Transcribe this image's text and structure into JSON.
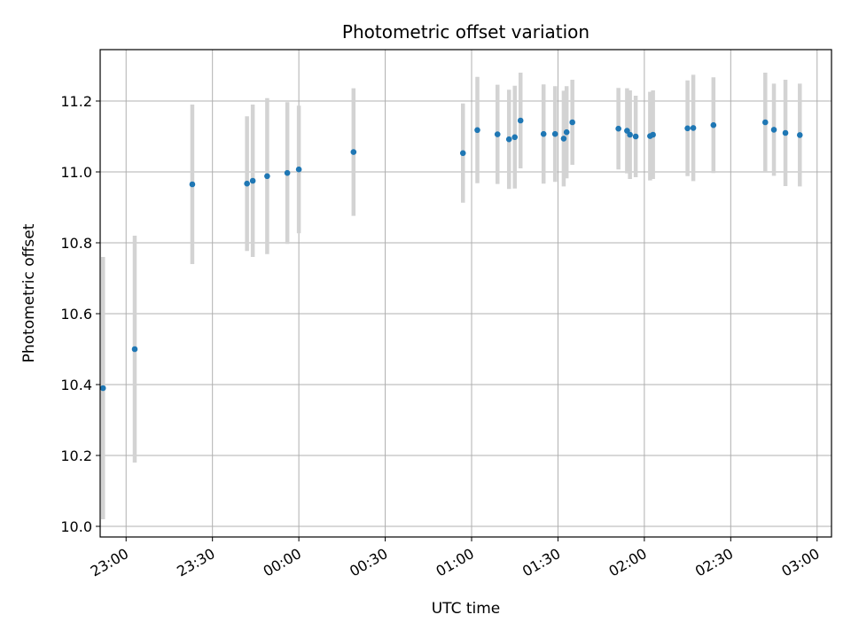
{
  "chart_data": {
    "type": "scatter",
    "title": "Photometric offset variation",
    "xlabel": "UTC time",
    "ylabel": "Photometric offset",
    "x_axis": "time",
    "xlim": [
      "22:51",
      "03:05"
    ],
    "ylim": [
      9.97,
      11.345
    ],
    "grid": true,
    "legend": "none",
    "x_ticks": [
      "23:00",
      "23:30",
      "00:00",
      "00:30",
      "01:00",
      "01:30",
      "02:00",
      "02:30",
      "03:00"
    ],
    "y_ticks": [
      "10.0",
      "10.2",
      "10.4",
      "10.6",
      "10.8",
      "11.0",
      "11.2"
    ],
    "y_tick_values": [
      10.0,
      10.2,
      10.4,
      10.6,
      10.8,
      11.0,
      11.2
    ],
    "colors": {
      "point": "#1f77b4",
      "errorbar": "#d3d3d3",
      "grid": "#b0b0b0"
    },
    "points": [
      {
        "t": "22:52",
        "y": 10.39,
        "err": 0.37
      },
      {
        "t": "23:03",
        "y": 10.5,
        "err": 0.32
      },
      {
        "t": "23:23",
        "y": 10.965,
        "err": 0.225
      },
      {
        "t": "23:42",
        "y": 10.967,
        "err": 0.19
      },
      {
        "t": "23:44",
        "y": 10.975,
        "err": 0.215
      },
      {
        "t": "23:49",
        "y": 10.988,
        "err": 0.22
      },
      {
        "t": "23:56",
        "y": 10.997,
        "err": 0.2
      },
      {
        "t": "00:00",
        "y": 11.007,
        "err": 0.18
      },
      {
        "t": "00:19",
        "y": 11.056,
        "err": 0.18
      },
      {
        "t": "00:57",
        "y": 11.053,
        "err": 0.14
      },
      {
        "t": "01:02",
        "y": 11.118,
        "err": 0.15
      },
      {
        "t": "01:09",
        "y": 11.106,
        "err": 0.14
      },
      {
        "t": "01:13",
        "y": 11.092,
        "err": 0.14
      },
      {
        "t": "01:15",
        "y": 11.098,
        "err": 0.145
      },
      {
        "t": "01:17",
        "y": 11.145,
        "err": 0.135
      },
      {
        "t": "01:25",
        "y": 11.107,
        "err": 0.14
      },
      {
        "t": "01:29",
        "y": 11.107,
        "err": 0.135
      },
      {
        "t": "01:32",
        "y": 11.094,
        "err": 0.135
      },
      {
        "t": "01:33",
        "y": 11.112,
        "err": 0.13
      },
      {
        "t": "01:35",
        "y": 11.14,
        "err": 0.12
      },
      {
        "t": "01:51",
        "y": 11.122,
        "err": 0.115
      },
      {
        "t": "01:54",
        "y": 11.116,
        "err": 0.12
      },
      {
        "t": "01:55",
        "y": 11.105,
        "err": 0.125
      },
      {
        "t": "01:57",
        "y": 11.1,
        "err": 0.115
      },
      {
        "t": "02:02",
        "y": 11.101,
        "err": 0.125
      },
      {
        "t": "02:03",
        "y": 11.105,
        "err": 0.125
      },
      {
        "t": "02:15",
        "y": 11.123,
        "err": 0.135
      },
      {
        "t": "02:17",
        "y": 11.124,
        "err": 0.15
      },
      {
        "t": "02:24",
        "y": 11.132,
        "err": 0.135
      },
      {
        "t": "02:42",
        "y": 11.14,
        "err": 0.14
      },
      {
        "t": "02:45",
        "y": 11.119,
        "err": 0.13
      },
      {
        "t": "02:49",
        "y": 11.11,
        "err": 0.15
      },
      {
        "t": "02:54",
        "y": 11.104,
        "err": 0.145
      }
    ]
  }
}
